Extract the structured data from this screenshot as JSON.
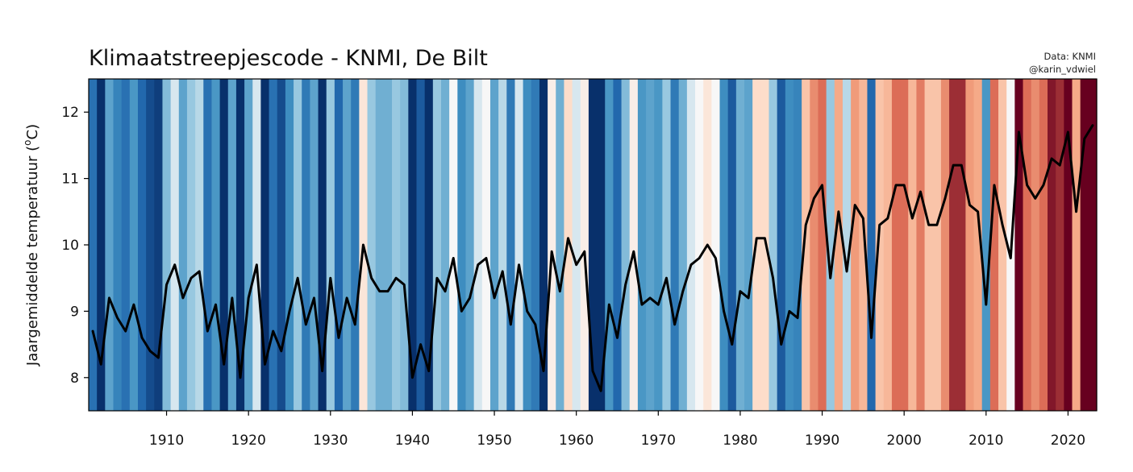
{
  "chart_data": {
    "type": "line",
    "title": "Klimaatstreepjescode - KNMI, De Bilt",
    "credit": [
      "Data: KNMI",
      "@karin_vdwiel"
    ],
    "ylabel": "Jaargemiddelde temperatuur (°C)",
    "ylabel_base": "Jaargemiddelde temperatuur (",
    "ylabel_degree": "o",
    "ylabel_unit": "C)",
    "xlim": [
      1901,
      2023
    ],
    "ylim": [
      7.5,
      12.5
    ],
    "xticks": [
      1910,
      1920,
      1930,
      1940,
      1950,
      1960,
      1970,
      1980,
      1990,
      2000,
      2010,
      2020
    ],
    "yticks": [
      8,
      9,
      10,
      11,
      12
    ],
    "stripes_colormap": "RdBu_r (blue = cold year, red = warm year)",
    "stripes_range": [
      8.2,
      11.4
    ],
    "line_color": "#000000",
    "grid": false,
    "x": [
      1901,
      1902,
      1903,
      1904,
      1905,
      1906,
      1907,
      1908,
      1909,
      1910,
      1911,
      1912,
      1913,
      1914,
      1915,
      1916,
      1917,
      1918,
      1919,
      1920,
      1921,
      1922,
      1923,
      1924,
      1925,
      1926,
      1927,
      1928,
      1929,
      1930,
      1931,
      1932,
      1933,
      1934,
      1935,
      1936,
      1937,
      1938,
      1939,
      1940,
      1941,
      1942,
      1943,
      1944,
      1945,
      1946,
      1947,
      1948,
      1949,
      1950,
      1951,
      1952,
      1953,
      1954,
      1955,
      1956,
      1957,
      1958,
      1959,
      1960,
      1961,
      1962,
      1963,
      1964,
      1965,
      1966,
      1967,
      1968,
      1969,
      1970,
      1971,
      1972,
      1973,
      1974,
      1975,
      1976,
      1977,
      1978,
      1979,
      1980,
      1981,
      1982,
      1983,
      1984,
      1985,
      1986,
      1987,
      1988,
      1989,
      1990,
      1991,
      1992,
      1993,
      1994,
      1995,
      1996,
      1997,
      1998,
      1999,
      2000,
      2001,
      2002,
      2003,
      2004,
      2005,
      2006,
      2007,
      2008,
      2009,
      2010,
      2011,
      2012,
      2013,
      2014,
      2015,
      2016,
      2017,
      2018,
      2019,
      2020,
      2021,
      2022,
      2023
    ],
    "series": [
      {
        "values": [
          8.7,
          8.2,
          9.2,
          8.9,
          8.7,
          9.1,
          8.6,
          8.4,
          8.3,
          9.4,
          9.7,
          9.2,
          9.5,
          9.6,
          8.7,
          9.1,
          8.2,
          9.2,
          8.0,
          9.2,
          9.7,
          8.2,
          8.7,
          8.4,
          9.0,
          9.5,
          8.8,
          9.2,
          8.1,
          9.5,
          8.6,
          9.2,
          8.8,
          10.0,
          9.5,
          9.3,
          9.3,
          9.5,
          9.4,
          8.0,
          8.5,
          8.1,
          9.5,
          9.3,
          9.8,
          9.0,
          9.2,
          9.7,
          9.8,
          9.2,
          9.6,
          8.8,
          9.7,
          9.0,
          8.8,
          8.1,
          9.9,
          9.3,
          10.1,
          9.7,
          9.9,
          8.1,
          7.8,
          9.1,
          8.6,
          9.4,
          9.9,
          9.1,
          9.2,
          9.1,
          9.5,
          8.8,
          9.3,
          9.7,
          9.8,
          10.0,
          9.8,
          9.0,
          8.5,
          9.3,
          9.2,
          10.1,
          10.1,
          9.5,
          8.5,
          9.0,
          8.9,
          10.3,
          10.7,
          10.9,
          9.5,
          10.5,
          9.6,
          10.6,
          10.4,
          8.6,
          10.3,
          10.4,
          10.9,
          10.9,
          10.4,
          10.8,
          10.3,
          10.3,
          10.7,
          11.2,
          11.2,
          10.6,
          10.5,
          9.1,
          10.9,
          10.3,
          9.8,
          11.7,
          10.9,
          10.7,
          10.9,
          11.3,
          11.2,
          11.7,
          10.5,
          11.6,
          11.8
        ]
      }
    ]
  }
}
